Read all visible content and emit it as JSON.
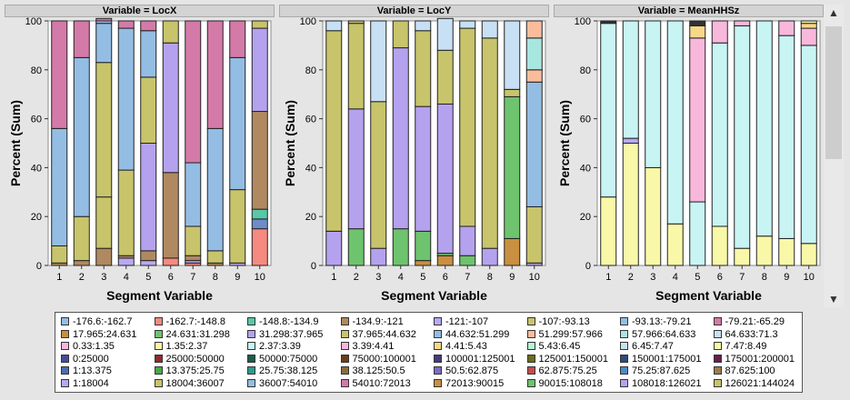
{
  "chart_data": [
    {
      "type": "bar",
      "stacked": true,
      "panel_title": "Variable = LocX",
      "xlabel": "Segment Variable",
      "ylabel": "Percent (Sum)",
      "ylim": [
        0,
        100
      ],
      "yticks": [
        0,
        20,
        40,
        60,
        80,
        100
      ],
      "categories": [
        "1",
        "2",
        "3",
        "4",
        "5",
        "6",
        "7",
        "8",
        "9",
        "10"
      ],
      "series": [
        {
          "color": "#f58a80",
          "values": [
            0,
            0,
            0,
            0,
            0,
            3,
            1,
            0,
            0,
            15
          ]
        },
        {
          "color": "#6f8cc8",
          "values": [
            0,
            0,
            0,
            0,
            0,
            0,
            0,
            0,
            0,
            4
          ]
        },
        {
          "color": "#b8a9f0",
          "values": [
            0,
            0,
            0,
            3,
            2,
            0,
            1,
            0,
            1,
            0
          ]
        },
        {
          "color": "#b08960",
          "values": [
            1,
            2,
            7,
            1,
            4,
            35,
            2,
            1,
            0,
            0
          ]
        },
        {
          "color": "#58c8a8",
          "values": [
            0,
            0,
            0,
            0,
            0,
            0,
            0,
            0,
            0,
            4
          ]
        },
        {
          "color": "#c8c46c",
          "values": [
            7,
            18,
            21,
            35,
            0,
            0,
            12,
            5,
            30,
            0
          ]
        },
        {
          "color": "#b08960",
          "values": [
            0,
            0,
            0,
            0,
            0,
            0,
            0,
            0,
            0,
            40
          ]
        },
        {
          "color": "#b5a2ee",
          "values": [
            0,
            0,
            0,
            0,
            44,
            53,
            0,
            0,
            0,
            0
          ]
        },
        {
          "color": "#c8c46c",
          "values": [
            0,
            0,
            0,
            0,
            27,
            0,
            0,
            0,
            0,
            0
          ]
        },
        {
          "color": "#c8c46c",
          "values": [
            0,
            0,
            55,
            0,
            0,
            0,
            0,
            0,
            0,
            0
          ]
        },
        {
          "color": "#b5a2ee",
          "values": [
            0,
            0,
            0,
            0,
            0,
            0,
            0,
            0,
            0,
            34
          ]
        },
        {
          "color": "#94bde4",
          "values": [
            48,
            65,
            16,
            58,
            19,
            0,
            26,
            50,
            54,
            0
          ]
        },
        {
          "color": "#94bde4",
          "values": [
            0,
            0,
            1,
            0,
            0,
            0,
            0,
            0,
            0,
            0
          ]
        },
        {
          "color": "#c8c46c",
          "values": [
            0,
            0,
            0,
            0,
            0,
            9,
            0,
            0,
            0,
            3
          ]
        },
        {
          "color": "#d47aa8",
          "values": [
            44,
            15,
            1,
            3,
            4,
            0,
            58,
            44,
            15,
            0
          ]
        }
      ]
    },
    {
      "type": "bar",
      "stacked": true,
      "panel_title": "Variable = LocY",
      "xlabel": "Segment Variable",
      "ylabel": "Percent (Sum)",
      "ylim": [
        0,
        100
      ],
      "yticks": [
        0,
        20,
        40,
        60,
        80,
        100
      ],
      "categories": [
        "1",
        "2",
        "3",
        "4",
        "5",
        "6",
        "7",
        "8",
        "9",
        "10"
      ],
      "series": [
        {
          "color": "#c89040",
          "values": [
            0,
            0,
            0,
            0,
            2,
            4,
            0,
            0,
            11,
            0
          ]
        },
        {
          "color": "#6ec36e",
          "values": [
            0,
            15,
            0,
            15,
            12,
            1,
            4,
            0,
            58,
            0
          ]
        },
        {
          "color": "#b5a2ee",
          "values": [
            14,
            49,
            7,
            74,
            51,
            61,
            12,
            7,
            0,
            1
          ]
        },
        {
          "color": "#c8c46c",
          "values": [
            82,
            35,
            60,
            11,
            31,
            22,
            81,
            86,
            0,
            23
          ]
        },
        {
          "color": "#94bde4",
          "values": [
            0,
            0,
            0,
            0,
            0,
            0,
            0,
            0,
            0,
            51
          ]
        },
        {
          "color": "#fbbc9c",
          "values": [
            0,
            0,
            0,
            0,
            0,
            0,
            0,
            0,
            0,
            5
          ]
        },
        {
          "color": "#a8e6e0",
          "values": [
            0,
            0,
            0,
            0,
            0,
            0,
            0,
            0,
            0,
            13
          ]
        },
        {
          "color": "#c8e0f4",
          "values": [
            4,
            0,
            33,
            0,
            4,
            13,
            3,
            7,
            0,
            0
          ]
        },
        {
          "color": "#c8c46c",
          "values": [
            0,
            1,
            0,
            0,
            0,
            0,
            0,
            0,
            3,
            0
          ]
        },
        {
          "color": "#fbbc9c",
          "values": [
            0,
            0,
            0,
            0,
            0,
            0,
            0,
            0,
            0,
            7
          ]
        },
        {
          "color": "#c8e0f4",
          "values": [
            0,
            0,
            0,
            0,
            0,
            0,
            0,
            0,
            28,
            0
          ]
        }
      ]
    },
    {
      "type": "bar",
      "stacked": true,
      "panel_title": "Variable = MeanHHSz",
      "xlabel": "Segment Variable",
      "ylabel": "Percent (Sum)",
      "ylim": [
        0,
        100
      ],
      "yticks": [
        0,
        20,
        40,
        60,
        80,
        100
      ],
      "categories": [
        "1",
        "2",
        "3",
        "4",
        "5",
        "6",
        "7",
        "8",
        "9",
        "10"
      ],
      "series": [
        {
          "color": "#f8f8a8",
          "values": [
            28,
            50,
            40,
            17,
            0,
            16,
            7,
            12,
            11,
            9
          ]
        },
        {
          "color": "#b8a9f0",
          "values": [
            0,
            2,
            0,
            0,
            0,
            0,
            0,
            0,
            0,
            0
          ]
        },
        {
          "color": "#c8f4f4",
          "values": [
            71,
            48,
            60,
            83,
            26,
            75,
            91,
            88,
            83,
            81
          ]
        },
        {
          "color": "#f8b8dc",
          "values": [
            0,
            0,
            0,
            0,
            67,
            9,
            2,
            0,
            6,
            7
          ]
        },
        {
          "color": "#f8d888",
          "values": [
            0,
            0,
            0,
            0,
            5,
            0,
            0,
            0,
            0,
            2
          ]
        },
        {
          "color": "#333333",
          "values": [
            1,
            0,
            0,
            0,
            2,
            0,
            0,
            0,
            0,
            0
          ]
        },
        {
          "color": "#f8f8a8",
          "values": [
            0,
            0,
            0,
            0,
            0,
            0,
            0,
            0,
            0,
            1
          ]
        }
      ]
    }
  ],
  "legend": [
    {
      "label": "-176.6:-162.7",
      "color": "#94bde4"
    },
    {
      "label": "-162.7:-148.8",
      "color": "#f58a80"
    },
    {
      "label": "-148.8:-134.9",
      "color": "#58c8a8"
    },
    {
      "label": "-134.9:-121",
      "color": "#b08960"
    },
    {
      "label": "-121:-107",
      "color": "#b8a9f0"
    },
    {
      "label": "-107:-93.13",
      "color": "#c8c46c"
    },
    {
      "label": "-93.13:-79.21",
      "color": "#94bde4"
    },
    {
      "label": "-79.21:-65.29",
      "color": "#d47aa8"
    },
    {
      "label": "17.965:24.631",
      "color": "#c89040"
    },
    {
      "label": "24.631:31.298",
      "color": "#6ec36e"
    },
    {
      "label": "31.298:37.965",
      "color": "#b5a2ee"
    },
    {
      "label": "37.965:44.632",
      "color": "#c8c46c"
    },
    {
      "label": "44.632:51.299",
      "color": "#94bde4"
    },
    {
      "label": "51.299:57.966",
      "color": "#fbbc9c"
    },
    {
      "label": "57.966:64.633",
      "color": "#a8e6e0"
    },
    {
      "label": "64.633:71.3",
      "color": "#c8e0f4"
    },
    {
      "label": "0.33:1.35",
      "color": "#f8b8dc"
    },
    {
      "label": "1.35:2.37",
      "color": "#f8f8a8"
    },
    {
      "label": "2.37:3.39",
      "color": "#c8f4f4"
    },
    {
      "label": "3.39:4.41",
      "color": "#f8b8dc"
    },
    {
      "label": "4.41:5.43",
      "color": "#f8d888"
    },
    {
      "label": "5.43:6.45",
      "color": "#b8f4d8"
    },
    {
      "label": "6.45:7.47",
      "color": "#c8e0f4"
    },
    {
      "label": "7.47:8.49",
      "color": "#f8f8a8"
    },
    {
      "label": "0:25000",
      "color": "#444c9c"
    },
    {
      "label": "25000:50000",
      "color": "#8c2c2c"
    },
    {
      "label": "50000:75000",
      "color": "#1c5c4c"
    },
    {
      "label": "75000:100001",
      "color": "#6c3c1c"
    },
    {
      "label": "100001:125001",
      "color": "#443c7c"
    },
    {
      "label": "125001:150001",
      "color": "#6c6c1c"
    },
    {
      "label": "150001:175001",
      "color": "#2c4c7c"
    },
    {
      "label": "175001:200001",
      "color": "#6c1c4c"
    },
    {
      "label": "1:13.375",
      "color": "#4c6cb4"
    },
    {
      "label": "13.375:25.75",
      "color": "#48a848"
    },
    {
      "label": "25.75:38.125",
      "color": "#2c9c8c"
    },
    {
      "label": "38.125:50.5",
      "color": "#8c6c3c"
    },
    {
      "label": "50.5:62.875",
      "color": "#7c6cc4"
    },
    {
      "label": "62.875:75.25",
      "color": "#c44c4c"
    },
    {
      "label": "75.25:87.625",
      "color": "#4c8cc4"
    },
    {
      "label": "87.625:100",
      "color": "#9c7c4c"
    },
    {
      "label": "1:18004",
      "color": "#b8a9f0"
    },
    {
      "label": "18004:36007",
      "color": "#c8c46c"
    },
    {
      "label": "36007:54010",
      "color": "#94bde4"
    },
    {
      "label": "54010:72013",
      "color": "#d47aa8"
    },
    {
      "label": "72013:90015",
      "color": "#c89040"
    },
    {
      "label": "90015:108018",
      "color": "#6ec36e"
    },
    {
      "label": "108018:126021",
      "color": "#b5a2ee"
    },
    {
      "label": "126021:144024",
      "color": "#c8c46c"
    }
  ],
  "scrollbar": {
    "up_glyph": "▲",
    "down_glyph": "▼"
  }
}
